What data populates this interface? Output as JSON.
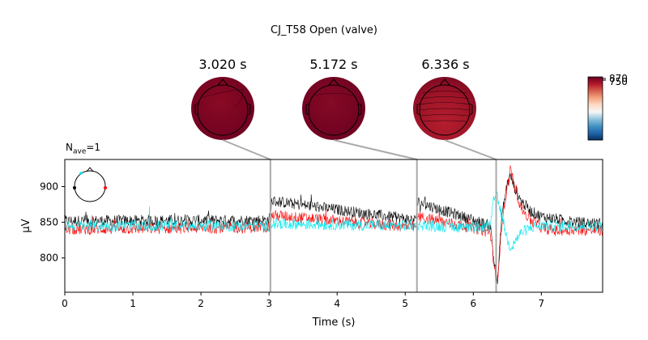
{
  "figure": {
    "title": "CJ_T58 Open (valve)",
    "nave_base": "N",
    "nave_sub": "ave",
    "nave_value": "=1"
  },
  "topomaps": [
    {
      "time_label": "3.020 s",
      "time": 3.02,
      "level": 0.98
    },
    {
      "time_label": "5.172 s",
      "time": 5.172,
      "level": 0.97
    },
    {
      "time_label": "6.336 s",
      "time": 6.336,
      "level": 0.82
    }
  ],
  "colorbar": {
    "tick_labels": [
      "870",
      "750"
    ],
    "colormap": "RdBu_r",
    "colors": [
      "#053061",
      "#2166ac",
      "#4393c3",
      "#92c5de",
      "#f7f7f7",
      "#fddbc7",
      "#f4a582",
      "#d6604d",
      "#b2182b",
      "#67001f"
    ]
  },
  "chart_data": {
    "type": "line",
    "xlabel": "Time (s)",
    "ylabel": "µV",
    "xlim": [
      0,
      7.9
    ],
    "ylim": [
      752,
      938
    ],
    "xticks": [
      0,
      1,
      2,
      3,
      4,
      5,
      6,
      7
    ],
    "yticks": [
      800,
      850,
      900
    ],
    "vlines": [
      3.02,
      5.172,
      6.336
    ],
    "grid": false,
    "series": [
      {
        "color": "#000000",
        "baseline": 850,
        "x": [
          0,
          3.0,
          3.04,
          5.15,
          5.19,
          6.1,
          6.25,
          6.3,
          6.34,
          6.36,
          6.42,
          6.5,
          6.55,
          6.6,
          6.7,
          6.85,
          7.0,
          7.2,
          7.5,
          7.9
        ],
        "y": [
          852,
          853,
          880,
          853,
          878,
          850,
          845,
          800,
          762,
          770,
          860,
          905,
          915,
          900,
          880,
          865,
          858,
          855,
          850,
          848
        ]
      },
      {
        "color": "#ff0000",
        "baseline": 842,
        "x": [
          0,
          3.0,
          3.04,
          5.15,
          5.19,
          6.1,
          6.25,
          6.3,
          6.34,
          6.36,
          6.42,
          6.5,
          6.55,
          6.6,
          6.7,
          6.85,
          7.0,
          7.2,
          7.5,
          7.9
        ],
        "y": [
          840,
          843,
          860,
          843,
          858,
          840,
          835,
          795,
          770,
          775,
          850,
          900,
          920,
          905,
          870,
          852,
          843,
          838,
          840,
          838
        ]
      },
      {
        "color": "#00e5ee",
        "baseline": 845,
        "x": [
          0,
          3.0,
          3.04,
          5.15,
          5.19,
          6.1,
          6.25,
          6.3,
          6.34,
          6.36,
          6.42,
          6.5,
          6.55,
          6.6,
          6.7,
          6.85,
          7.0,
          7.2,
          7.5,
          7.9
        ],
        "y": [
          845,
          845,
          848,
          845,
          846,
          842,
          845,
          880,
          890,
          880,
          860,
          825,
          815,
          822,
          835,
          843,
          846,
          845,
          845,
          844
        ]
      }
    ]
  }
}
